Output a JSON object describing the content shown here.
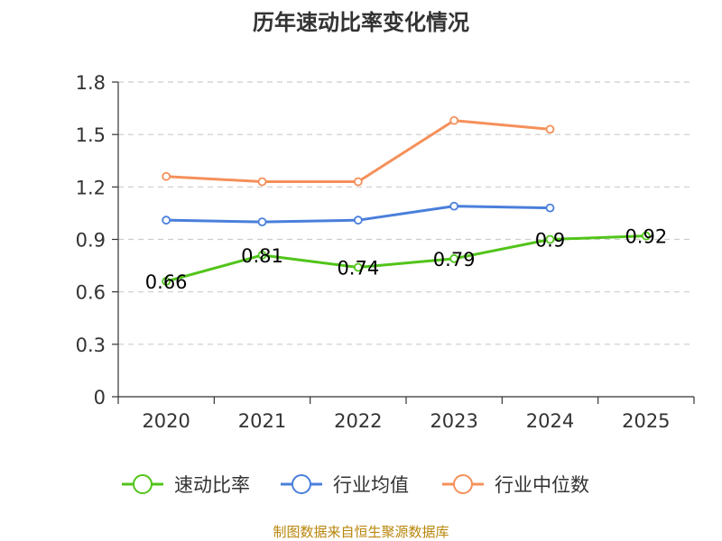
{
  "chart_data": {
    "type": "line",
    "title": "历年速动比率变化情况",
    "categories": [
      "2020",
      "2021",
      "2022",
      "2023",
      "2024",
      "2025"
    ],
    "ylim": [
      0,
      1.8
    ],
    "yticks": [
      "0",
      "0.3",
      "0.6",
      "0.9",
      "1.2",
      "1.5",
      "1.8"
    ],
    "ytick_values": [
      0,
      0.3,
      0.6,
      0.9,
      1.2,
      1.5,
      1.8
    ],
    "grid": true,
    "legend_position": "bottom",
    "series": [
      {
        "name": "速动比率",
        "color": "#52c41a",
        "values": [
          0.66,
          0.81,
          0.74,
          0.79,
          0.9,
          0.92
        ],
        "labels": [
          "0.66",
          "0.81",
          "0.74",
          "0.79",
          "0.9",
          "0.92"
        ],
        "show_labels": true
      },
      {
        "name": "行业均值",
        "color": "#4a7fdb",
        "values": [
          1.01,
          1.0,
          1.01,
          1.09,
          1.08,
          null
        ],
        "show_labels": false
      },
      {
        "name": "行业中位数",
        "color": "#f5905a",
        "values": [
          1.26,
          1.23,
          1.23,
          1.58,
          1.53,
          null
        ],
        "show_labels": false
      }
    ],
    "source": "制图数据来自恒生聚源数据库"
  }
}
